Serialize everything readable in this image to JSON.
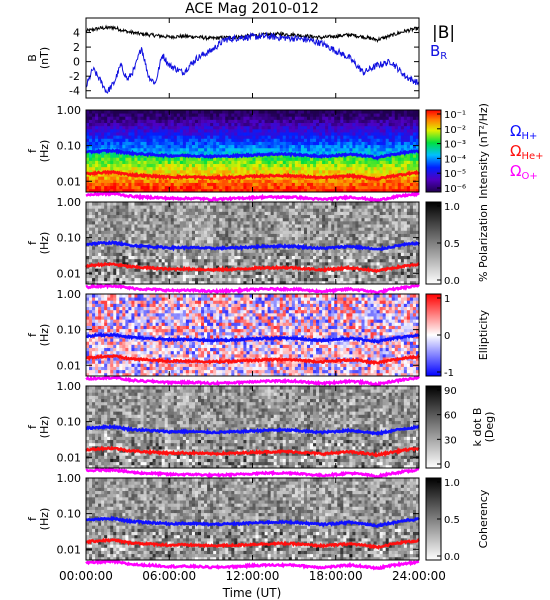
{
  "chart_data": {
    "type": "spectrogram",
    "title": "ACE Mag 2010-012",
    "xlabel": "Time (UT)",
    "xlim_hours": [
      0,
      24
    ],
    "x_ticks": [
      "00:00:00",
      "06:00:00",
      "12:00:00",
      "18:00:00",
      "24:00:00"
    ],
    "panels": [
      {
        "id": "b-field",
        "type": "line",
        "ylabel": [
          "B",
          "(nT)"
        ],
        "ylim": [
          -5,
          6
        ],
        "y_ticks": [
          "4",
          "2",
          "0",
          "-2",
          "-4"
        ],
        "y_tick_values": [
          4,
          2,
          0,
          -2,
          -4
        ],
        "series": [
          {
            "name": "|B|",
            "color": "#000000",
            "x": [
              0,
              1,
              2,
              3,
              4,
              5,
              6,
              7,
              8,
              9,
              10,
              11,
              12,
              13,
              14,
              15,
              16,
              17,
              18,
              19,
              20,
              21,
              22,
              23,
              24
            ],
            "y": [
              4.2,
              4.6,
              4.7,
              4.1,
              3.8,
              3.6,
              3.4,
              3.5,
              3.4,
              3.2,
              3.3,
              3.4,
              3.6,
              3.7,
              3.8,
              3.7,
              3.5,
              3.3,
              3.5,
              3.7,
              3.4,
              3.0,
              3.6,
              4.2,
              4.6
            ]
          },
          {
            "name": "BR",
            "color": "#1010e0",
            "x": [
              0,
              0.5,
              1,
              1.5,
              2,
              2.5,
              3,
              3.5,
              4,
              4.5,
              5,
              5.5,
              6,
              7,
              8,
              9,
              10,
              11,
              12,
              13,
              14,
              15,
              16,
              17,
              18,
              19,
              20,
              21,
              22,
              23,
              24
            ],
            "y": [
              -3.5,
              -1.0,
              -2.5,
              -4.2,
              -3.0,
              -0.5,
              -2.5,
              -1.0,
              2.0,
              -2.0,
              -3.0,
              1.0,
              -0.5,
              -1.5,
              0.5,
              1.5,
              3.0,
              3.3,
              3.4,
              3.5,
              3.3,
              3.2,
              3.0,
              2.5,
              1.5,
              0.5,
              -1.5,
              -0.5,
              0.0,
              -2.0,
              -3.0
            ]
          }
        ],
        "legend": [
          {
            "label": "|B|",
            "color": "#000000"
          },
          {
            "label": "B",
            "sub": "R",
            "color": "#1010e0"
          }
        ]
      },
      {
        "id": "intensity",
        "type": "heatmap",
        "ylabel": [
          "f",
          "(Hz)"
        ],
        "log_y": true,
        "ylim": [
          0.005,
          1.0
        ],
        "y_ticks": [
          "1.00",
          "0.10",
          "0.01"
        ],
        "colorscale": "rainbow",
        "colorbar": {
          "label": "Intensity (nT²/Hz)",
          "ticks": [
            "10⁻¹",
            "10⁻²",
            "10⁻³",
            "10⁻⁴",
            "10⁻⁵",
            "10⁻⁶"
          ]
        }
      },
      {
        "id": "polarization",
        "type": "heatmap",
        "ylabel": [
          "f",
          "(Hz)"
        ],
        "log_y": true,
        "ylim": [
          0.005,
          1.0
        ],
        "y_ticks": [
          "1.00",
          "0.10",
          "0.01"
        ],
        "colorscale": "gray",
        "colorbar": {
          "label": "% Polarization",
          "ticks": [
            "1.0",
            "0.5",
            "0.0"
          ]
        }
      },
      {
        "id": "ellipticity",
        "type": "heatmap",
        "ylabel": [
          "f",
          "(Hz)"
        ],
        "log_y": true,
        "ylim": [
          0.005,
          1.0
        ],
        "y_ticks": [
          "1.00",
          "0.10",
          "0.01"
        ],
        "colorscale": "bwr",
        "colorbar": {
          "label": "Ellipticity",
          "ticks": [
            "1",
            "0",
            "-1"
          ]
        }
      },
      {
        "id": "kdotb",
        "type": "heatmap",
        "ylabel": [
          "f",
          "(Hz)"
        ],
        "log_y": true,
        "ylim": [
          0.005,
          1.0
        ],
        "y_ticks": [
          "1.00",
          "0.10",
          "0.01"
        ],
        "colorscale": "gray",
        "colorbar": {
          "label": "k dot B (Deg)",
          "label_lines": [
            "k dot B",
            "(Deg)"
          ],
          "ticks": [
            "90",
            "60",
            "30",
            "0"
          ]
        }
      },
      {
        "id": "coherency",
        "type": "heatmap",
        "ylabel": [
          "f",
          "(Hz)"
        ],
        "log_y": true,
        "ylim": [
          0.005,
          1.0
        ],
        "y_ticks": [
          "1.00",
          "0.10",
          "0.01"
        ],
        "colorscale": "gray",
        "colorbar": {
          "label": "Coherency",
          "ticks": [
            "1.0",
            "0.5",
            "0.0"
          ]
        }
      }
    ],
    "gyrofrequency_lines": [
      {
        "label": "ΩH+",
        "symbol": "Ω",
        "sub": "H+",
        "color": "#1010ff",
        "x": [
          0,
          1,
          2,
          3,
          4,
          5,
          6,
          7,
          8,
          9,
          10,
          11,
          12,
          13,
          14,
          15,
          16,
          17,
          18,
          19,
          20,
          21,
          22,
          23,
          24
        ],
        "f": [
          0.065,
          0.07,
          0.072,
          0.062,
          0.058,
          0.055,
          0.052,
          0.053,
          0.052,
          0.05,
          0.051,
          0.052,
          0.055,
          0.057,
          0.058,
          0.057,
          0.053,
          0.05,
          0.053,
          0.057,
          0.052,
          0.046,
          0.055,
          0.064,
          0.07
        ]
      },
      {
        "label": "ΩHe+",
        "symbol": "Ω",
        "sub": "He+",
        "color": "#ff1010",
        "x": [
          0,
          1,
          2,
          3,
          4,
          5,
          6,
          7,
          8,
          9,
          10,
          11,
          12,
          13,
          14,
          15,
          16,
          17,
          18,
          19,
          20,
          21,
          22,
          23,
          24
        ],
        "f": [
          0.016,
          0.0175,
          0.018,
          0.0155,
          0.0145,
          0.0138,
          0.013,
          0.0133,
          0.013,
          0.0125,
          0.0128,
          0.013,
          0.0138,
          0.0142,
          0.0145,
          0.0142,
          0.0133,
          0.0125,
          0.0133,
          0.0142,
          0.013,
          0.0115,
          0.0138,
          0.016,
          0.0175
        ]
      },
      {
        "label": "ΩO+",
        "symbol": "Ω",
        "sub": "O+",
        "color": "#ff00ff",
        "x": [
          0,
          1,
          2,
          3,
          4,
          5,
          6,
          7,
          8,
          9,
          10,
          11,
          12,
          13,
          14,
          15,
          16,
          17,
          18,
          19,
          20,
          21,
          22,
          23,
          24
        ],
        "f": [
          0.0041,
          0.0044,
          0.0045,
          0.0039,
          0.0036,
          0.0035,
          0.0033,
          0.0033,
          0.0033,
          0.0031,
          0.0032,
          0.0033,
          0.0035,
          0.0036,
          0.0036,
          0.0036,
          0.0033,
          0.0031,
          0.0033,
          0.0036,
          0.0033,
          0.0029,
          0.0035,
          0.004,
          0.0044
        ]
      }
    ]
  }
}
